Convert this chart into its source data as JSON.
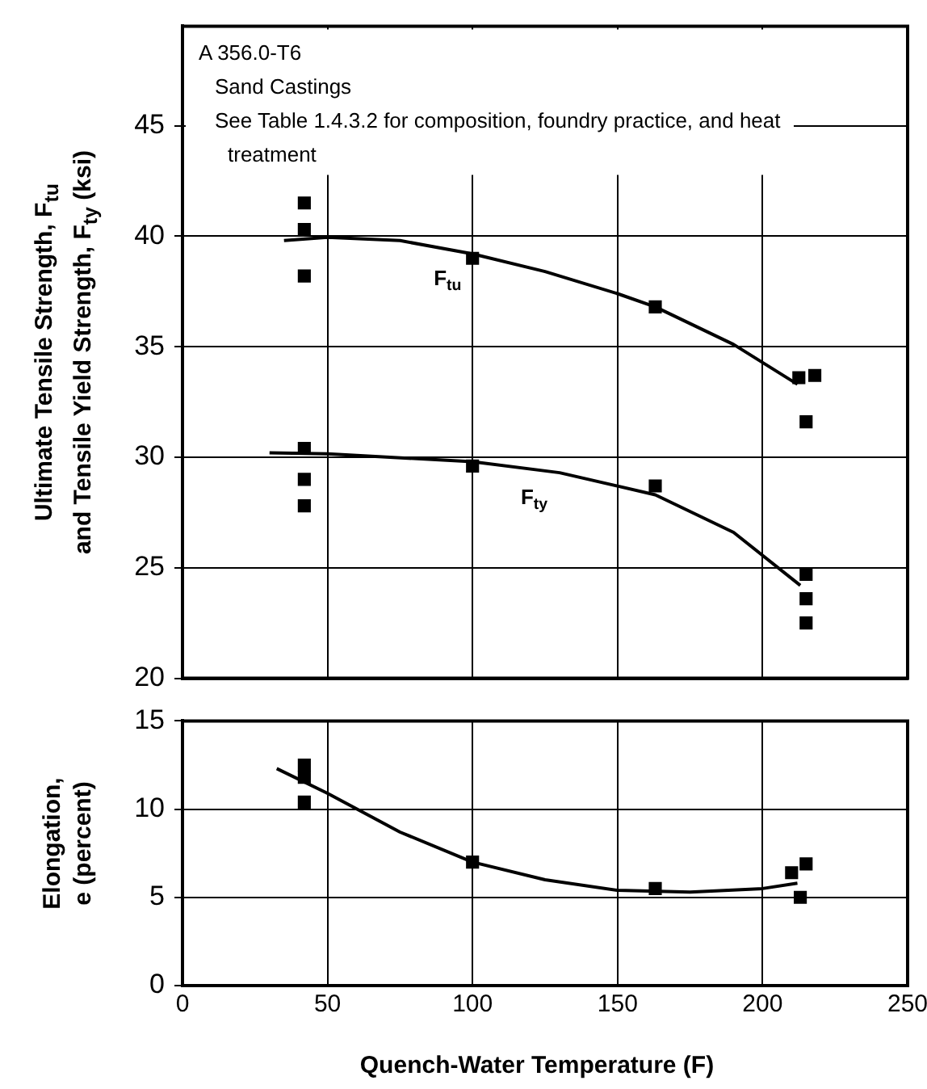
{
  "chart_data": [
    {
      "type": "scatter",
      "ylabel": "Ultimate Tensile Strength, F$_{tu}$\nand Tensile Yield Strength, F$_{ty}$ (ksi)",
      "annotations": [
        "A 356.0-T6",
        "Sand Castings",
        "See Table 1.4.3.2 for composition, foundry practice, and heat treatment"
      ],
      "xlim": [
        0,
        250
      ],
      "xticks": [
        0,
        50,
        100,
        150,
        200,
        250
      ],
      "ylim": [
        20,
        49.5
      ],
      "yticks": [
        20,
        25,
        30,
        35,
        40,
        45
      ],
      "tick_labels": "y",
      "grid": true,
      "legend": false,
      "marker": "square",
      "series": [
        {
          "color": "#000000",
          "x": [
            42,
            42,
            42,
            100,
            163,
            212.5,
            218,
            215
          ],
          "values": [
            41.5,
            40.3,
            38.2,
            39.0,
            36.8,
            33.6,
            33.7,
            31.6
          ]
        },
        {
          "type": "line",
          "name": "F$_{tu}$",
          "color": "#000000",
          "marker": "none",
          "x": [
            35,
            50,
            75,
            100,
            125,
            150,
            163,
            190,
            212
          ],
          "values": [
            39.8,
            39.95,
            39.8,
            39.2,
            38.4,
            37.4,
            36.8,
            35.1,
            33.3
          ]
        },
        {
          "color": "#000000",
          "x": [
            42,
            42,
            42,
            100,
            163,
            215,
            215,
            215
          ],
          "values": [
            30.4,
            29.0,
            27.8,
            29.6,
            28.7,
            24.7,
            23.6,
            22.5
          ]
        },
        {
          "type": "line",
          "name": "F$_{ty}$",
          "color": "#000000",
          "marker": "none",
          "x": [
            30,
            50,
            100,
            130,
            163,
            190,
            213
          ],
          "values": [
            30.2,
            30.15,
            29.8,
            29.3,
            28.3,
            26.6,
            24.2
          ]
        }
      ]
    },
    {
      "type": "scatter",
      "xlabel": "Quench-Water Temperature (F)",
      "ylabel": "Elongation,\ne (percent)",
      "xlim": [
        0,
        250
      ],
      "xticks": [
        0,
        50,
        100,
        150,
        200,
        250
      ],
      "ylim": [
        0,
        15
      ],
      "yticks": [
        0,
        5,
        10,
        15
      ],
      "grid": true,
      "legend": false,
      "marker": "square",
      "series": [
        {
          "color": "#000000",
          "x": [
            42,
            42,
            42,
            100,
            163,
            210,
            215,
            213
          ],
          "values": [
            12.5,
            11.8,
            10.4,
            7.0,
            5.5,
            6.4,
            6.9,
            5.0
          ]
        },
        {
          "type": "line",
          "color": "#000000",
          "marker": "none",
          "x": [
            32.5,
            50,
            75,
            100,
            125,
            150,
            175,
            200,
            212
          ],
          "values": [
            12.3,
            10.9,
            8.7,
            7.0,
            6.0,
            5.4,
            5.3,
            5.5,
            5.8
          ]
        }
      ]
    }
  ]
}
